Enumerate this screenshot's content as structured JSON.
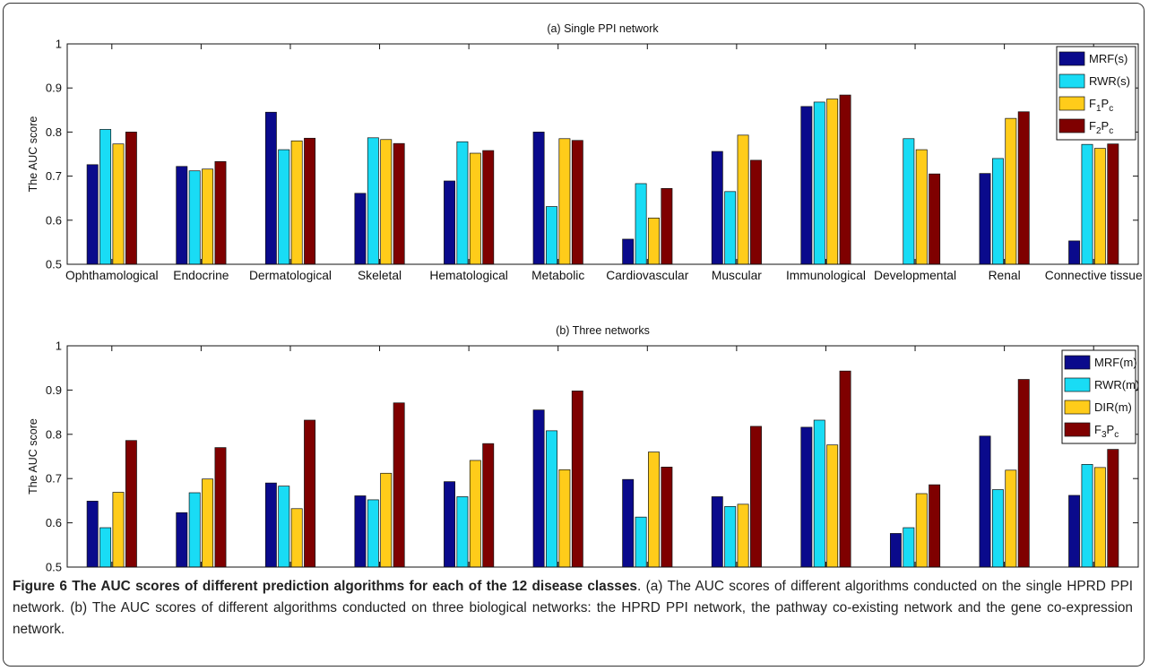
{
  "figure": {
    "caption_bold": "Figure 6 The AUC scores of different prediction algorithms for each of the 12 disease classes",
    "caption_text": ". (a) The AUC scores of different algorithms conducted on the single HPRD PPI network. (b) The AUC scores of different algorithms conducted on three biological networks: the HPRD PPI network, the pathway co-existing network and the gene co-expression network."
  },
  "colors": {
    "navy": "#0a0a8c",
    "cyan": "#19dcf5",
    "gold": "#ffcc1a",
    "maroon": "#7f0000"
  },
  "chart_data": [
    {
      "type": "bar",
      "title": "(a) Single PPI network",
      "xlabel": "",
      "ylabel": "The AUC score",
      "ylim": [
        0.5,
        1
      ],
      "yticks": [
        "0.5",
        "0.6",
        "0.7",
        "0.8",
        "0.9",
        "1"
      ],
      "grid": false,
      "legend_position": "top-right",
      "categories": [
        "Ophthamological",
        "Endocrine",
        "Dermatological",
        "Skeletal",
        "Hematological",
        "Metabolic",
        "Cardiovascular",
        "Muscular",
        "Immunological",
        "Developmental",
        "Renal",
        "Connective tissue"
      ],
      "series": [
        {
          "name": "MRF(s)",
          "label": [
            "MRF(s)"
          ],
          "color": "#0a0a8c",
          "values": [
            0.726,
            0.722,
            0.845,
            0.661,
            0.689,
            0.8,
            0.557,
            0.756,
            0.858,
            null,
            0.706,
            0.553
          ]
        },
        {
          "name": "RWR(s)",
          "label": [
            "RWR(s)"
          ],
          "color": "#19dcf5",
          "values": [
            0.806,
            0.712,
            0.76,
            0.787,
            0.778,
            0.631,
            0.683,
            0.665,
            0.868,
            0.785,
            0.74,
            0.772
          ]
        },
        {
          "name": "F1Pc",
          "label": [
            "F",
            "1",
            "P",
            "c"
          ],
          "color": "#ffcc1a",
          "values": [
            0.773,
            0.716,
            0.78,
            0.783,
            0.752,
            0.785,
            0.605,
            0.793,
            0.875,
            0.76,
            0.831,
            0.763
          ]
        },
        {
          "name": "F2Pc",
          "label": [
            "F",
            "2",
            "P",
            "c"
          ],
          "color": "#7f0000",
          "values": [
            0.8,
            0.733,
            0.786,
            0.774,
            0.758,
            0.781,
            0.672,
            0.736,
            0.884,
            0.705,
            0.846,
            0.773
          ]
        }
      ]
    },
    {
      "type": "bar",
      "title": "(b) Three networks",
      "xlabel": "",
      "ylabel": "The AUC score",
      "ylim": [
        0.5,
        1
      ],
      "yticks": [
        "0.5",
        "0.6",
        "0.7",
        "0.8",
        "0.9",
        "1"
      ],
      "grid": false,
      "legend_position": "top-right",
      "categories": [
        "Ophthamological",
        "Endocrine",
        "Dermatological",
        "Skeletal",
        "Hematological",
        "Metabolic",
        "Cardiovascular",
        "Muscular",
        "Immunological",
        "Developmental",
        "Renal",
        "Connective tissue"
      ],
      "series": [
        {
          "name": "MRF(m)",
          "label": [
            "MRF(m)"
          ],
          "color": "#0a0a8c",
          "values": [
            0.649,
            0.623,
            0.69,
            0.661,
            0.693,
            0.855,
            0.698,
            0.659,
            0.816,
            0.576,
            0.796,
            0.662
          ]
        },
        {
          "name": "RWR(m)",
          "label": [
            "RWR(m)"
          ],
          "color": "#19dcf5",
          "values": [
            0.589,
            0.668,
            0.683,
            0.652,
            0.659,
            0.808,
            0.613,
            0.637,
            0.832,
            0.589,
            0.675,
            0.732
          ]
        },
        {
          "name": "DIR(m)",
          "label": [
            "DIR(m)"
          ],
          "color": "#ffcc1a",
          "values": [
            0.669,
            0.699,
            0.632,
            0.712,
            0.741,
            0.72,
            0.76,
            0.642,
            0.776,
            0.666,
            0.719,
            0.725
          ]
        },
        {
          "name": "F3Pc",
          "label": [
            "F",
            "3",
            "P",
            "c"
          ],
          "color": "#7f0000",
          "values": [
            0.786,
            0.77,
            0.832,
            0.871,
            0.779,
            0.898,
            0.726,
            0.818,
            0.943,
            0.686,
            0.924,
            0.766
          ]
        }
      ]
    }
  ]
}
